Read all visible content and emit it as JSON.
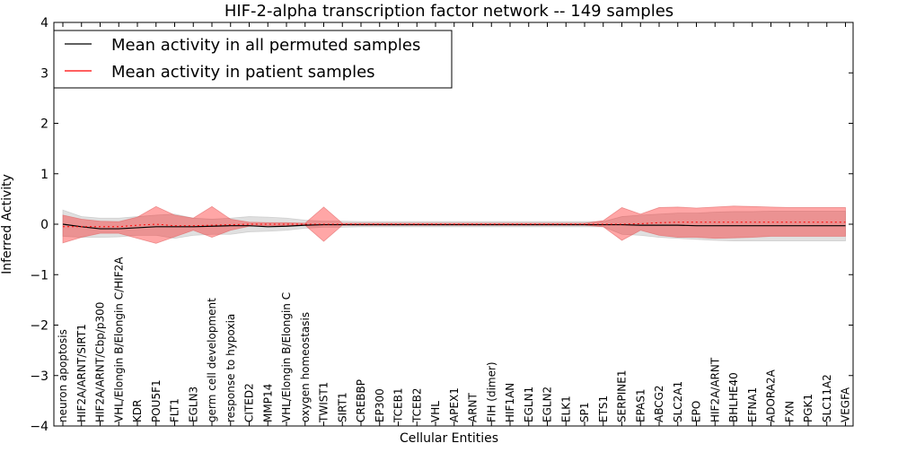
{
  "chart_data": {
    "type": "line",
    "title": "HIF-2-alpha transcription factor network -- 149 samples",
    "xlabel": "Cellular Entities",
    "ylabel": "Inferred Activity",
    "ylim": [
      -4,
      4
    ],
    "yticks": [
      -4,
      -3,
      -2,
      -1,
      0,
      1,
      2,
      3,
      4
    ],
    "grid": false,
    "legend_position": "top-left",
    "categories": [
      "neuron apoptosis",
      "HIF2A/ARNT/SIRT1",
      "HIF2A/ARNT/Cbp/p300",
      "VHL/Elongin B/Elongin C/HIF2A",
      "KDR",
      "POU5F1",
      "FLT1",
      "EGLN3",
      "germ cell development",
      "response to hypoxia",
      "CITED2",
      "MMP14",
      "VHL/Elongin B/Elongin C",
      "oxygen homeostasis",
      "TWIST1",
      "SIRT1",
      "CREBBP",
      "EP300",
      "TCEB1",
      "TCEB2",
      "VHL",
      "APEX1",
      "ARNT",
      "FIH (dimer)",
      "HIF1AN",
      "EGLN1",
      "EGLN2",
      "ELK1",
      "SP1",
      "ETS1",
      "SERPINE1",
      "EPAS1",
      "ABCG2",
      "SLC2A1",
      "EPO",
      "HIF2A/ARNT",
      "BHLHE40",
      "EFNA1",
      "ADORA2A",
      "FXN",
      "PGK1",
      "SLC11A2",
      "VEGFA"
    ],
    "series": [
      {
        "name": "Mean activity in all permuted samples",
        "color": "#000000",
        "values": [
          0.0,
          -0.05,
          -0.09,
          -0.09,
          -0.07,
          -0.05,
          -0.05,
          -0.05,
          -0.04,
          -0.03,
          -0.03,
          -0.05,
          -0.04,
          -0.02,
          -0.01,
          -0.01,
          -0.01,
          -0.01,
          -0.01,
          -0.01,
          -0.01,
          -0.01,
          -0.01,
          -0.01,
          -0.01,
          -0.01,
          -0.01,
          -0.01,
          -0.01,
          -0.01,
          -0.01,
          -0.02,
          -0.02,
          -0.02,
          -0.03,
          -0.03,
          -0.03,
          -0.03,
          -0.03,
          -0.03,
          -0.03,
          -0.03,
          -0.03
        ],
        "band_low": [
          -0.24,
          -0.26,
          -0.26,
          -0.25,
          -0.22,
          -0.22,
          -0.28,
          -0.22,
          -0.2,
          -0.2,
          -0.15,
          -0.14,
          -0.12,
          -0.08,
          -0.06,
          -0.06,
          -0.05,
          -0.05,
          -0.05,
          -0.05,
          -0.05,
          -0.05,
          -0.05,
          -0.05,
          -0.05,
          -0.05,
          -0.05,
          -0.05,
          -0.05,
          -0.05,
          -0.2,
          -0.22,
          -0.26,
          -0.28,
          -0.3,
          -0.32,
          -0.33,
          -0.33,
          -0.33,
          -0.33,
          -0.33,
          -0.33,
          -0.33
        ],
        "band_high": [
          0.28,
          0.15,
          0.12,
          0.12,
          0.15,
          0.18,
          0.2,
          0.12,
          0.1,
          0.12,
          0.15,
          0.14,
          0.12,
          0.08,
          0.06,
          0.06,
          0.05,
          0.05,
          0.05,
          0.05,
          0.05,
          0.05,
          0.05,
          0.05,
          0.05,
          0.05,
          0.05,
          0.05,
          0.05,
          0.05,
          0.15,
          0.18,
          0.2,
          0.22,
          0.22,
          0.24,
          0.25,
          0.25,
          0.26,
          0.26,
          0.26,
          0.26,
          0.26
        ]
      },
      {
        "name": "Mean activity in patient samples",
        "color": "#ff0000",
        "values": [
          -0.05,
          -0.05,
          -0.05,
          -0.05,
          -0.02,
          0.0,
          -0.03,
          -0.03,
          -0.02,
          -0.01,
          0.0,
          0.0,
          0.0,
          0.0,
          0.0,
          0.0,
          0.0,
          0.0,
          0.0,
          0.0,
          0.0,
          0.0,
          0.0,
          0.0,
          0.0,
          0.0,
          0.0,
          0.0,
          0.0,
          0.0,
          0.0,
          0.01,
          0.03,
          0.04,
          0.04,
          0.04,
          0.04,
          0.04,
          0.04,
          0.04,
          0.04,
          0.04,
          0.04
        ],
        "band_low": [
          -0.37,
          -0.26,
          -0.18,
          -0.18,
          -0.28,
          -0.38,
          -0.25,
          -0.12,
          -0.26,
          -0.12,
          -0.04,
          -0.03,
          -0.03,
          -0.02,
          -0.34,
          -0.02,
          -0.02,
          -0.02,
          -0.02,
          -0.02,
          -0.02,
          -0.02,
          -0.02,
          -0.02,
          -0.02,
          -0.02,
          -0.02,
          -0.02,
          -0.02,
          -0.05,
          -0.32,
          -0.12,
          -0.22,
          -0.26,
          -0.26,
          -0.28,
          -0.27,
          -0.26,
          -0.24,
          -0.24,
          -0.24,
          -0.24,
          -0.24
        ],
        "band_high": [
          0.18,
          0.1,
          0.06,
          0.05,
          0.14,
          0.35,
          0.18,
          0.12,
          0.35,
          0.1,
          0.04,
          0.03,
          0.03,
          0.02,
          0.34,
          0.02,
          0.02,
          0.02,
          0.02,
          0.02,
          0.02,
          0.02,
          0.02,
          0.02,
          0.02,
          0.02,
          0.02,
          0.02,
          0.02,
          0.07,
          0.33,
          0.2,
          0.33,
          0.34,
          0.32,
          0.34,
          0.36,
          0.35,
          0.34,
          0.33,
          0.33,
          0.33,
          0.33
        ]
      }
    ]
  }
}
